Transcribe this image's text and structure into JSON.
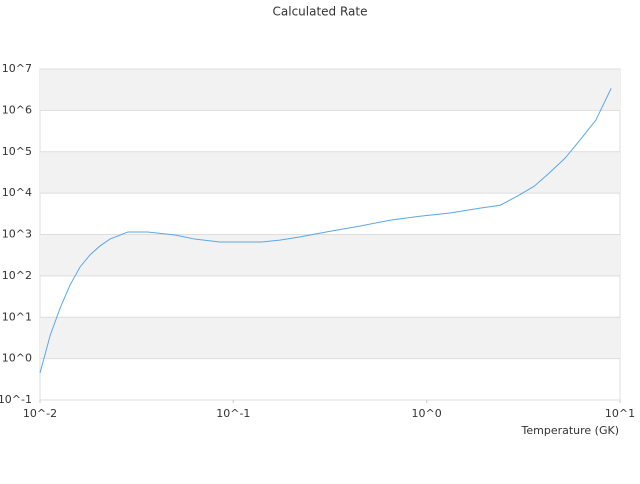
{
  "chart_data": {
    "type": "line",
    "title": "Calculated Rate",
    "x_label": "Temperature (GK)",
    "xscale": "log",
    "yscale": "log",
    "grid": true,
    "bands": true,
    "xlim": [
      0.01,
      10
    ],
    "ylim": [
      0.1,
      10000000
    ],
    "xticks": [
      {
        "value": 0.01,
        "label": "10^-2"
      },
      {
        "value": 0.1,
        "label": "10^-1"
      },
      {
        "value": 1,
        "label": "10^0"
      },
      {
        "value": 10,
        "label": "10^1"
      }
    ],
    "yticks": [
      {
        "value": 0.1,
        "label": "10^-1"
      },
      {
        "value": 1,
        "label": "10^0"
      },
      {
        "value": 10,
        "label": "10^1"
      },
      {
        "value": 100,
        "label": "10^2"
      },
      {
        "value": 1000,
        "label": "10^3"
      },
      {
        "value": 10000,
        "label": "10^4"
      },
      {
        "value": 100000,
        "label": "10^5"
      },
      {
        "value": 1000000,
        "label": "10^6"
      },
      {
        "value": 10000000,
        "label": "10^7"
      }
    ],
    "series": [
      {
        "color": "#5aa7e8",
        "x": [
          0.01,
          0.0113,
          0.0127,
          0.0143,
          0.0161,
          0.0181,
          0.0204,
          0.023,
          0.0285,
          0.036,
          0.05,
          0.063,
          0.085,
          0.14,
          0.174,
          0.22,
          0.317,
          0.45,
          0.65,
          0.92,
          1.32,
          1.89,
          2.4,
          3.0,
          3.6,
          4.3,
          5.2,
          6.2,
          7.5,
          9.0
        ],
        "values": [
          0.45,
          3.7,
          16.6,
          60,
          163,
          318,
          525,
          776,
          1150,
          1150,
          970,
          776,
          660,
          660,
          730,
          870,
          1200,
          1590,
          2230,
          2770,
          3300,
          4350,
          5100,
          8900,
          14700,
          30400,
          70000,
          190000,
          580000,
          3400000
        ]
      }
    ]
  }
}
